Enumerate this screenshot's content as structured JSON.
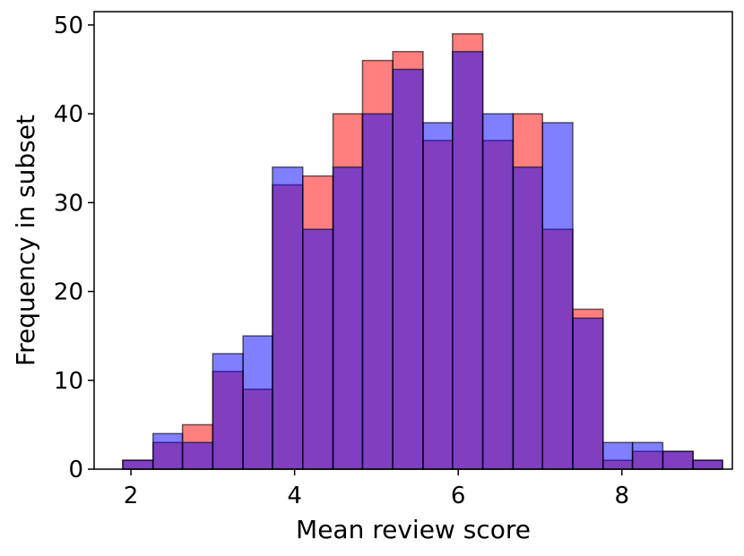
{
  "chart_data": {
    "type": "bar",
    "xlabel": "Mean review score",
    "ylabel": "Frequency in subset",
    "xlim": [
      1.55,
      9.35
    ],
    "ylim": [
      0,
      51.5
    ],
    "xticks": [
      2,
      4,
      6,
      8
    ],
    "yticks": [
      0,
      10,
      20,
      30,
      40,
      50
    ],
    "grid": false,
    "bin_edges": [
      1.9,
      2.27,
      2.63,
      3.0,
      3.37,
      3.73,
      4.1,
      4.47,
      4.83,
      5.2,
      5.57,
      5.93,
      6.3,
      6.67,
      7.03,
      7.4,
      7.77,
      8.13,
      8.5,
      8.87,
      9.23
    ],
    "series": [
      {
        "color": "#ff0000",
        "values": [
          1,
          3,
          5,
          11,
          9,
          32,
          33,
          40,
          46,
          47,
          37,
          49,
          37,
          40,
          27,
          18,
          1,
          2,
          2,
          1
        ]
      },
      {
        "color": "#0000ff",
        "values": [
          1,
          4,
          3,
          13,
          15,
          34,
          27,
          34,
          40,
          45,
          39,
          47,
          40,
          34,
          39,
          17,
          3,
          3,
          2,
          1
        ]
      }
    ]
  }
}
